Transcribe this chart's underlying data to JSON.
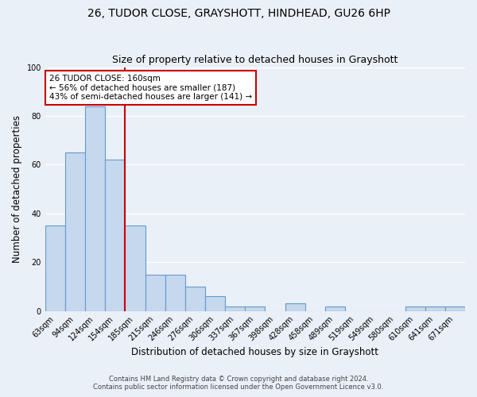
{
  "title": "26, TUDOR CLOSE, GRAYSHOTT, HINDHEAD, GU26 6HP",
  "subtitle": "Size of property relative to detached houses in Grayshott",
  "xlabel": "Distribution of detached houses by size in Grayshott",
  "ylabel": "Number of detached properties",
  "bar_labels": [
    "63sqm",
    "94sqm",
    "124sqm",
    "154sqm",
    "185sqm",
    "215sqm",
    "246sqm",
    "276sqm",
    "306sqm",
    "337sqm",
    "367sqm",
    "398sqm",
    "428sqm",
    "458sqm",
    "489sqm",
    "519sqm",
    "549sqm",
    "580sqm",
    "610sqm",
    "641sqm",
    "671sqm"
  ],
  "bar_values": [
    35,
    65,
    84,
    62,
    35,
    15,
    15,
    10,
    6,
    2,
    2,
    0,
    3,
    0,
    2,
    0,
    0,
    0,
    2,
    2,
    2
  ],
  "bar_color": "#c5d8ed",
  "bar_edge_color": "#6699cc",
  "vline_color": "#cc0000",
  "vline_x": 3.5,
  "annotation_title": "26 TUDOR CLOSE: 160sqm",
  "annotation_line1": "← 56% of detached houses are smaller (187)",
  "annotation_line2": "43% of semi-detached houses are larger (141) →",
  "annotation_box_color": "#ffffff",
  "annotation_box_edge": "#cc0000",
  "ylim": [
    0,
    100
  ],
  "yticks": [
    0,
    20,
    40,
    60,
    80,
    100
  ],
  "background_color": "#eaf0f8",
  "footer1": "Contains HM Land Registry data © Crown copyright and database right 2024.",
  "footer2": "Contains public sector information licensed under the Open Government Licence v3.0."
}
